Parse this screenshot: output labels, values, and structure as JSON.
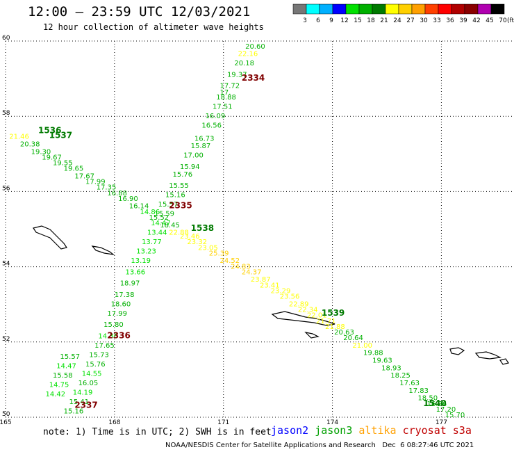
{
  "header": {
    "title": "12:00 — 23:59 UTC 12/03/2021",
    "subtitle": "12 hour collection of altimeter wave heights"
  },
  "colorbar": {
    "ticks": [
      "3",
      "6",
      "9",
      "12",
      "15",
      "18",
      "21",
      "24",
      "27",
      "30",
      "33",
      "36",
      "39",
      "42",
      "45",
      "70"
    ],
    "unit": "(ft)",
    "colors": [
      "#777777",
      "#00ffff",
      "#00b0ff",
      "#0000ff",
      "#00e000",
      "#00b000",
      "#007a00",
      "#ffff00",
      "#ffd000",
      "#ffa000",
      "#ff4000",
      "#ff0000",
      "#b00000",
      "#8a0000",
      "#b000b0",
      "#000000"
    ]
  },
  "note": "note: 1) Time is in UTC; 2) SWH is in feet",
  "legend": [
    {
      "label": "jason2",
      "color": "#0000ff"
    },
    {
      "label": "jason3",
      "color": "#00a000"
    },
    {
      "label": "altika",
      "color": "#ffa000"
    },
    {
      "label": "cryosat",
      "color": "#c00000"
    },
    {
      "label": "s3a",
      "color": "#c00000"
    }
  ],
  "credit": "NOAA/NESDIS Center for Satellite Applications and Research   Dec  6 08:27:46 UTC 2021",
  "chart_data": {
    "type": "scatter",
    "title": "12:00 — 23:59 UTC 12/03/2021",
    "subtitle": "12 hour collection of altimeter wave heights",
    "xlabel": "",
    "ylabel": "",
    "xlim": [
      165,
      179
    ],
    "ylim": [
      50,
      60
    ],
    "xticks": [
      "165",
      "168",
      "171",
      "174",
      "177"
    ],
    "yticks": [
      "50",
      "52",
      "54",
      "56",
      "58",
      "60"
    ],
    "grid": true,
    "time_labels": [
      {
        "label": "2334",
        "lon": 171.5,
        "lat": 58.95,
        "color": "#800000"
      },
      {
        "label": "2335",
        "lon": 169.5,
        "lat": 55.55,
        "color": "#800000"
      },
      {
        "label": "1538",
        "lon": 170.1,
        "lat": 54.95,
        "color": "#007a00"
      },
      {
        "label": "1536",
        "lon": 165.9,
        "lat": 57.55,
        "color": "#007a00"
      },
      {
        "label": "1537",
        "lon": 166.2,
        "lat": 57.42,
        "color": "#007a00"
      },
      {
        "label": "1539",
        "lon": 173.7,
        "lat": 52.7,
        "color": "#007a00"
      },
      {
        "label": "2336",
        "lon": 167.8,
        "lat": 52.1,
        "color": "#800000"
      },
      {
        "label": "2337",
        "lon": 166.9,
        "lat": 50.25,
        "color": "#800000"
      },
      {
        "label": "1540",
        "lon": 176.5,
        "lat": 50.3,
        "color": "#007a00"
      }
    ],
    "series": [
      {
        "name": "cryosat pass A",
        "points": [
          {
            "lon": 171.6,
            "lat": 59.8,
            "v": "20.60",
            "c": "#00b000"
          },
          {
            "lon": 171.4,
            "lat": 59.6,
            "v": "22.16",
            "c": "#ffff00"
          },
          {
            "lon": 171.3,
            "lat": 59.35,
            "v": "20.18",
            "c": "#00b000"
          },
          {
            "lon": 171.1,
            "lat": 59.05,
            "v": "19.37",
            "c": "#00b000"
          },
          {
            "lon": 170.9,
            "lat": 58.75,
            "v": "17.72",
            "c": "#00b000"
          },
          {
            "lon": 170.9,
            "lat": 58.58,
            "v": "17.",
            "c": "#00b000"
          },
          {
            "lon": 170.8,
            "lat": 58.45,
            "v": "18.88",
            "c": "#00b000"
          },
          {
            "lon": 170.7,
            "lat": 58.2,
            "v": "17.51",
            "c": "#00b000"
          },
          {
            "lon": 170.5,
            "lat": 57.95,
            "v": "16.09",
            "c": "#00b000"
          },
          {
            "lon": 170.4,
            "lat": 57.7,
            "v": "16.56",
            "c": "#00b000"
          },
          {
            "lon": 170.2,
            "lat": 57.35,
            "v": "16.73",
            "c": "#00b000"
          },
          {
            "lon": 170.1,
            "lat": 57.15,
            "v": "15.87",
            "c": "#00b000"
          },
          {
            "lon": 169.9,
            "lat": 56.9,
            "v": "17.00",
            "c": "#00b000"
          },
          {
            "lon": 169.8,
            "lat": 56.6,
            "v": "15.94",
            "c": "#00b000"
          },
          {
            "lon": 169.6,
            "lat": 56.4,
            "v": "15.76",
            "c": "#00b000"
          },
          {
            "lon": 169.5,
            "lat": 56.1,
            "v": "15.55",
            "c": "#00b000"
          },
          {
            "lon": 169.4,
            "lat": 55.85,
            "v": "15.16",
            "c": "#00b000"
          },
          {
            "lon": 169.2,
            "lat": 55.6,
            "v": "15.57",
            "c": "#00b000"
          },
          {
            "lon": 169.1,
            "lat": 55.35,
            "v": "15.59",
            "c": "#00b000"
          },
          {
            "lon": 169.0,
            "lat": 55.1,
            "v": "14.47",
            "c": "#00e000"
          },
          {
            "lon": 168.9,
            "lat": 54.85,
            "v": "13.44",
            "c": "#00e000"
          },
          {
            "lon": 168.75,
            "lat": 54.6,
            "v": "13.77",
            "c": "#00e000"
          },
          {
            "lon": 168.6,
            "lat": 54.35,
            "v": "13.23",
            "c": "#00e000"
          },
          {
            "lon": 168.45,
            "lat": 54.1,
            "v": "13.19",
            "c": "#00e000"
          },
          {
            "lon": 168.3,
            "lat": 53.8,
            "v": "13.66",
            "c": "#00e000"
          },
          {
            "lon": 168.15,
            "lat": 53.5,
            "v": "18.97",
            "c": "#00b000"
          },
          {
            "lon": 168.0,
            "lat": 53.2,
            "v": "17.38",
            "c": "#00b000"
          },
          {
            "lon": 167.9,
            "lat": 52.95,
            "v": "18.60",
            "c": "#00b000"
          },
          {
            "lon": 167.8,
            "lat": 52.7,
            "v": "17.99",
            "c": "#00b000"
          },
          {
            "lon": 167.7,
            "lat": 52.4,
            "v": "15.80",
            "c": "#00b000"
          },
          {
            "lon": 167.55,
            "lat": 52.1,
            "v": "14.36",
            "c": "#00e000"
          },
          {
            "lon": 167.45,
            "lat": 51.85,
            "v": "17.65",
            "c": "#00b000"
          },
          {
            "lon": 167.3,
            "lat": 51.6,
            "v": "15.73",
            "c": "#00b000"
          },
          {
            "lon": 167.2,
            "lat": 51.35,
            "v": "15.76",
            "c": "#00b000"
          },
          {
            "lon": 167.1,
            "lat": 51.1,
            "v": "14.55",
            "c": "#00e000"
          },
          {
            "lon": 167.0,
            "lat": 50.85,
            "v": "16.05",
            "c": "#00b000"
          },
          {
            "lon": 166.85,
            "lat": 50.6,
            "v": "14.19",
            "c": "#00e000"
          },
          {
            "lon": 166.75,
            "lat": 50.35,
            "v": "15.41",
            "c": "#00b000"
          },
          {
            "lon": 166.6,
            "lat": 50.1,
            "v": "15.16",
            "c": "#00b000"
          }
        ]
      },
      {
        "name": "cryosat pass B",
        "points": [
          {
            "lon": 166.5,
            "lat": 51.55,
            "v": "15.57",
            "c": "#00b000"
          },
          {
            "lon": 166.4,
            "lat": 51.3,
            "v": "14.47",
            "c": "#00e000"
          },
          {
            "lon": 166.3,
            "lat": 51.05,
            "v": "15.58",
            "c": "#00b000"
          },
          {
            "lon": 166.2,
            "lat": 50.8,
            "v": "14.75",
            "c": "#00e000"
          },
          {
            "lon": 166.1,
            "lat": 50.55,
            "v": "14.42",
            "c": "#00e000"
          }
        ]
      },
      {
        "name": "jason3 pass",
        "points": [
          {
            "lon": 165.1,
            "lat": 57.4,
            "v": "21.46",
            "c": "#ffff00"
          },
          {
            "lon": 165.4,
            "lat": 57.2,
            "v": "20.38",
            "c": "#00b000"
          },
          {
            "lon": 165.7,
            "lat": 57.0,
            "v": "19.30",
            "c": "#00b000"
          },
          {
            "lon": 166.0,
            "lat": 56.85,
            "v": "19.67",
            "c": "#00b000"
          },
          {
            "lon": 166.3,
            "lat": 56.7,
            "v": "19.55",
            "c": "#00b000"
          },
          {
            "lon": 166.6,
            "lat": 56.55,
            "v": "19.65",
            "c": "#00b000"
          },
          {
            "lon": 166.9,
            "lat": 56.35,
            "v": "17.67",
            "c": "#00b000"
          },
          {
            "lon": 167.2,
            "lat": 56.2,
            "v": "17.99",
            "c": "#00b000"
          },
          {
            "lon": 167.5,
            "lat": 56.05,
            "v": "17.35",
            "c": "#00b000"
          },
          {
            "lon": 167.8,
            "lat": 55.9,
            "v": "16.88",
            "c": "#00b000"
          },
          {
            "lon": 168.1,
            "lat": 55.75,
            "v": "16.90",
            "c": "#00b000"
          },
          {
            "lon": 168.4,
            "lat": 55.55,
            "v": "16.14",
            "c": "#00b000"
          },
          {
            "lon": 168.7,
            "lat": 55.4,
            "v": "14.86",
            "c": "#00e000"
          },
          {
            "lon": 168.95,
            "lat": 55.25,
            "v": "15.52",
            "c": "#00b000"
          },
          {
            "lon": 169.25,
            "lat": 55.05,
            "v": "18.45",
            "c": "#00b000"
          },
          {
            "lon": 169.5,
            "lat": 54.85,
            "v": "22.88",
            "c": "#ffff00"
          },
          {
            "lon": 169.8,
            "lat": 54.75,
            "v": "23.46",
            "c": "#ffff00"
          },
          {
            "lon": 170.0,
            "lat": 54.6,
            "v": "23.32",
            "c": "#ffff00"
          },
          {
            "lon": 170.3,
            "lat": 54.45,
            "v": "23.05",
            "c": "#ffff00"
          },
          {
            "lon": 170.6,
            "lat": 54.3,
            "v": "25.39",
            "c": "#ffd000"
          },
          {
            "lon": 170.9,
            "lat": 54.1,
            "v": "24.52",
            "c": "#ffd000"
          },
          {
            "lon": 171.2,
            "lat": 53.95,
            "v": "24.83",
            "c": "#ffd000"
          },
          {
            "lon": 171.5,
            "lat": 53.8,
            "v": "24.37",
            "c": "#ffd000"
          },
          {
            "lon": 171.75,
            "lat": 53.6,
            "v": "23.87",
            "c": "#ffff00"
          },
          {
            "lon": 172.0,
            "lat": 53.45,
            "v": "23.41",
            "c": "#ffff00"
          },
          {
            "lon": 172.3,
            "lat": 53.3,
            "v": "23.29",
            "c": "#ffff00"
          },
          {
            "lon": 172.55,
            "lat": 53.15,
            "v": "23.56",
            "c": "#ffff00"
          },
          {
            "lon": 172.8,
            "lat": 52.95,
            "v": "22.89",
            "c": "#ffff00"
          },
          {
            "lon": 173.05,
            "lat": 52.8,
            "v": "22.34",
            "c": "#ffff00"
          },
          {
            "lon": 173.3,
            "lat": 52.65,
            "v": "22.01",
            "c": "#ffff00"
          },
          {
            "lon": 173.55,
            "lat": 52.5,
            "v": "21.71",
            "c": "#ffff00"
          },
          {
            "lon": 173.8,
            "lat": 52.35,
            "v": "21.88",
            "c": "#ffff00"
          },
          {
            "lon": 174.05,
            "lat": 52.2,
            "v": "20.63",
            "c": "#00b000"
          },
          {
            "lon": 174.3,
            "lat": 52.05,
            "v": "20.64",
            "c": "#00b000"
          },
          {
            "lon": 174.55,
            "lat": 51.85,
            "v": "21.00",
            "c": "#ffff00"
          },
          {
            "lon": 174.85,
            "lat": 51.65,
            "v": "19.88",
            "c": "#00b000"
          },
          {
            "lon": 175.1,
            "lat": 51.45,
            "v": "19.63",
            "c": "#00b000"
          },
          {
            "lon": 175.35,
            "lat": 51.25,
            "v": "18.93",
            "c": "#00b000"
          },
          {
            "lon": 175.6,
            "lat": 51.05,
            "v": "18.25",
            "c": "#00b000"
          },
          {
            "lon": 175.85,
            "lat": 50.85,
            "v": "17.63",
            "c": "#00b000"
          },
          {
            "lon": 176.1,
            "lat": 50.65,
            "v": "17.83",
            "c": "#00b000"
          },
          {
            "lon": 176.35,
            "lat": 50.45,
            "v": "18.50",
            "c": "#00b000"
          },
          {
            "lon": 176.6,
            "lat": 50.3,
            "v": "16.56",
            "c": "#00b000"
          },
          {
            "lon": 176.85,
            "lat": 50.15,
            "v": "17.20",
            "c": "#00b000"
          },
          {
            "lon": 177.1,
            "lat": 50.0,
            "v": "15.70",
            "c": "#00b000"
          }
        ]
      }
    ]
  }
}
